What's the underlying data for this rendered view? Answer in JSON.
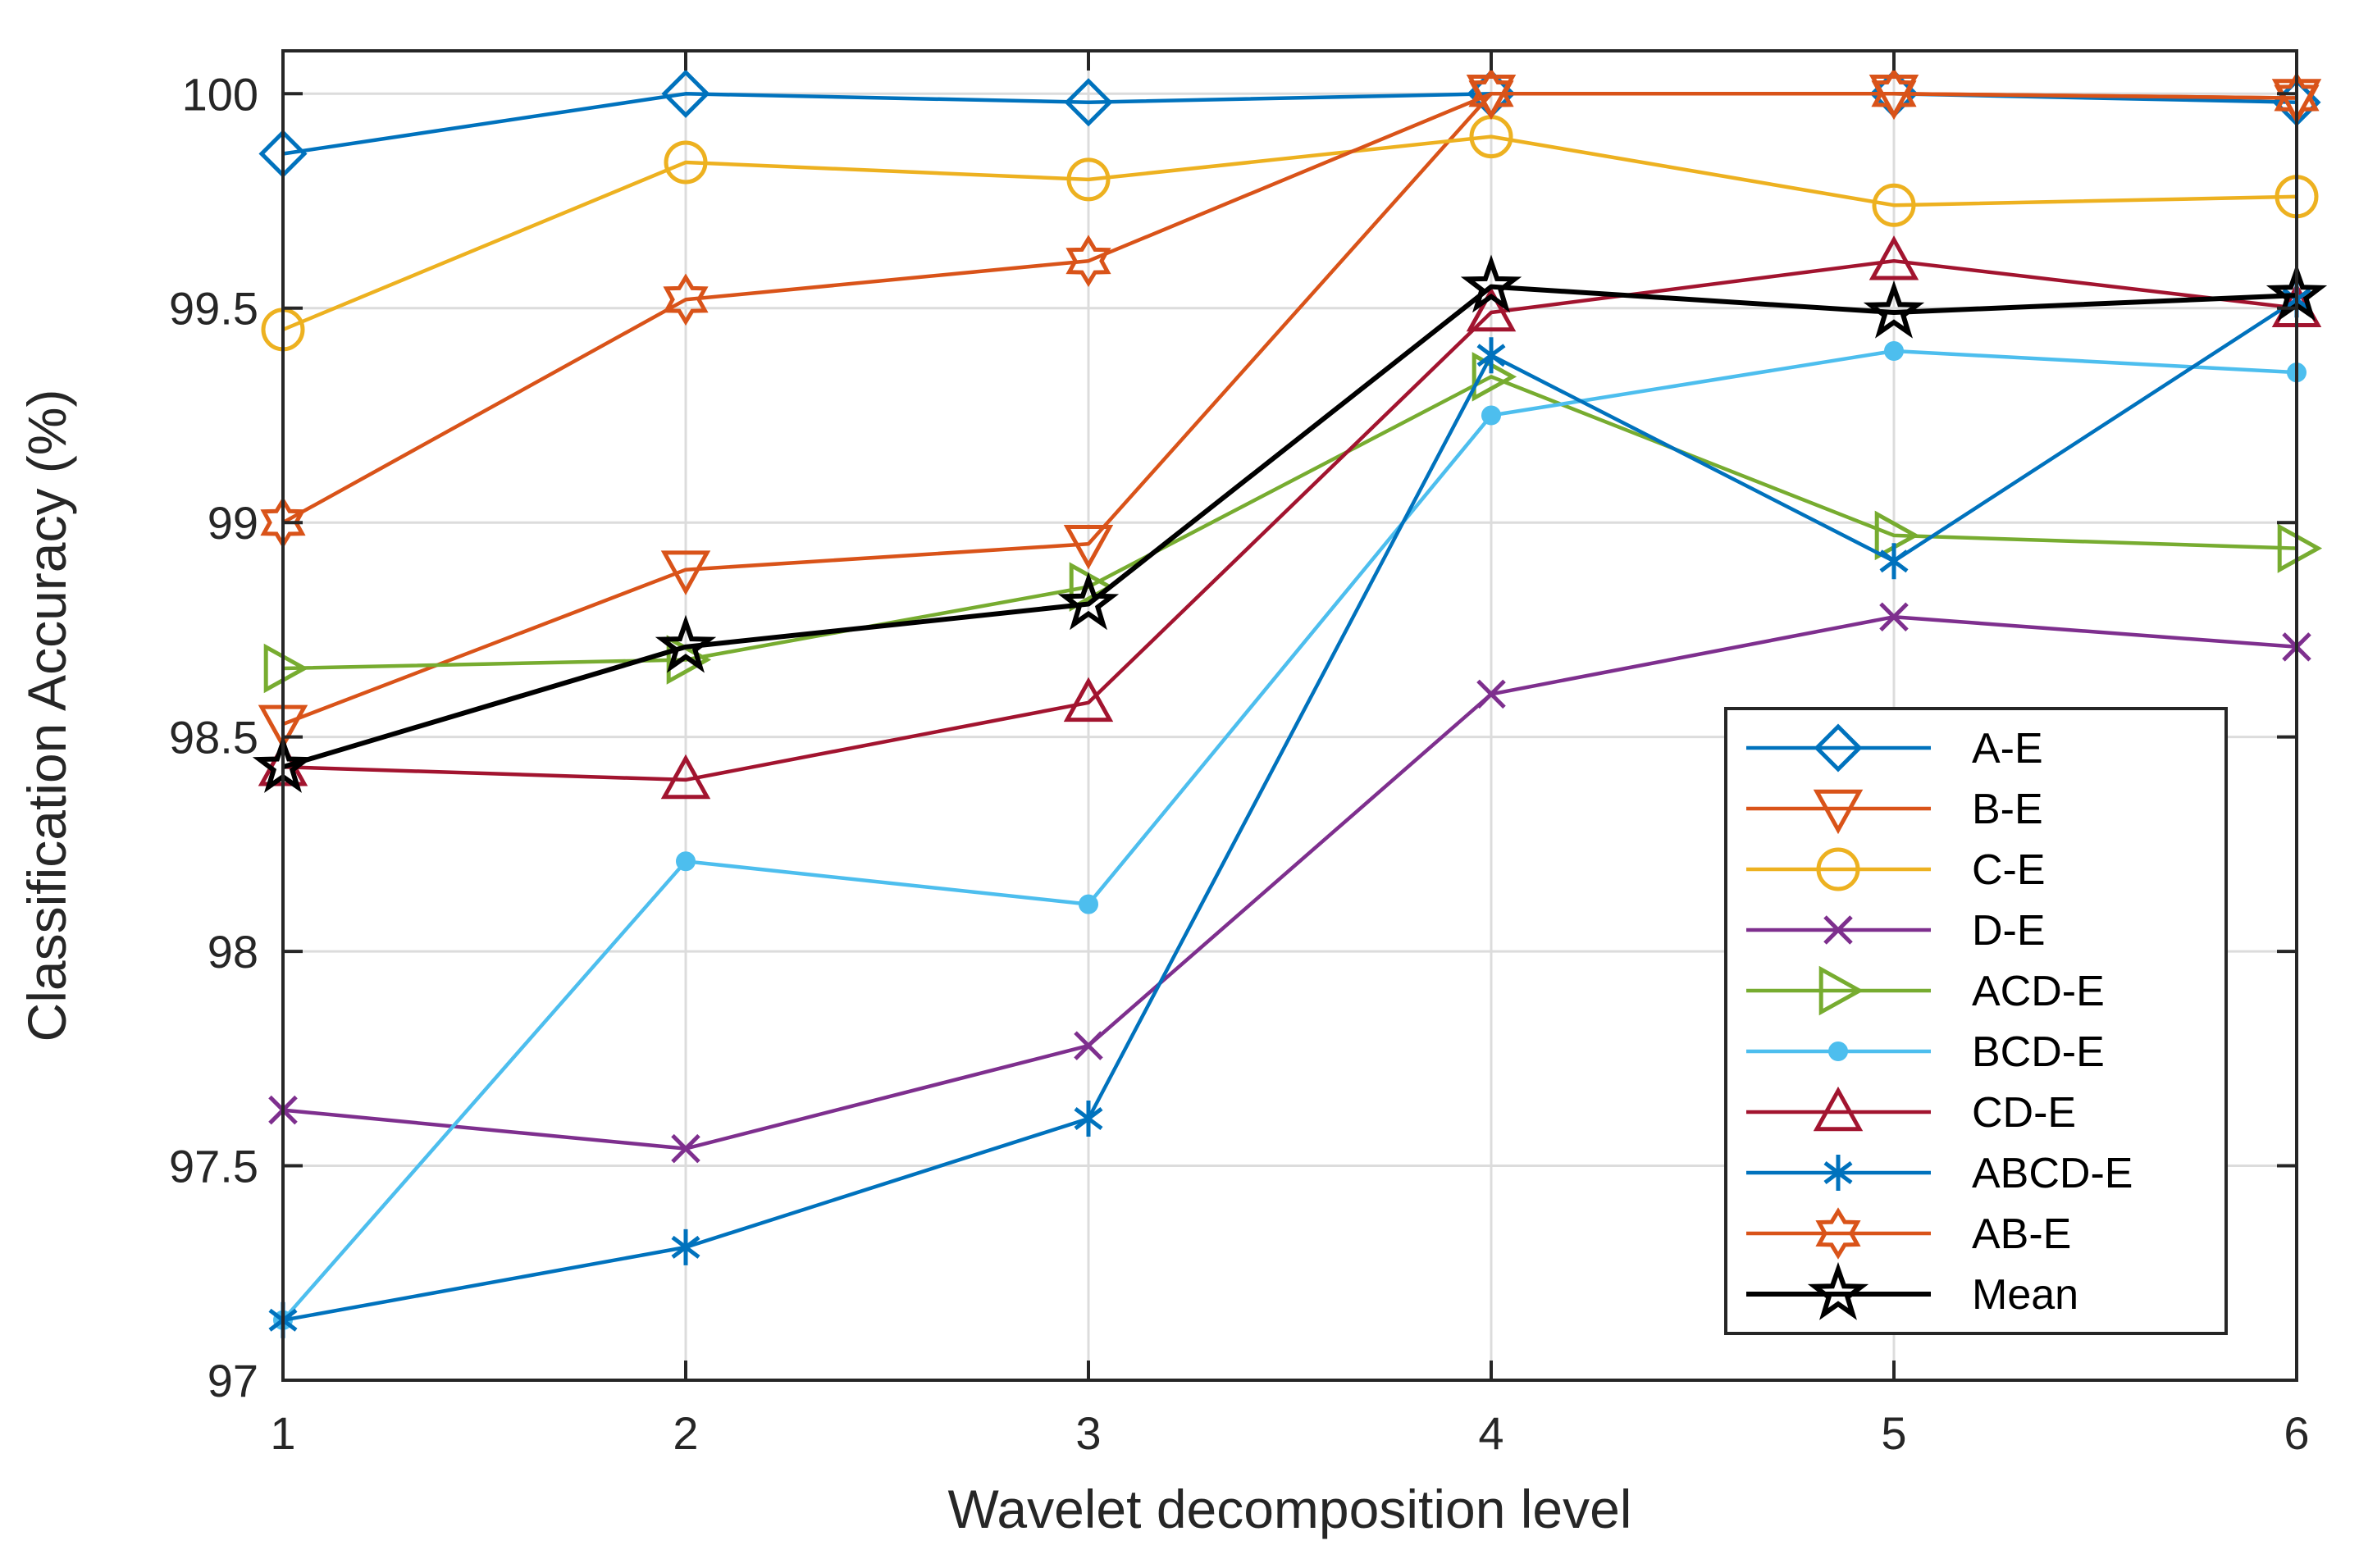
{
  "chart_data": {
    "type": "line",
    "title": "",
    "xlabel": "Wavelet decomposition level",
    "ylabel": "Classification Accuracy (%)",
    "xlim": [
      1,
      6
    ],
    "ylim": [
      97,
      100.1
    ],
    "x": [
      1,
      2,
      3,
      4,
      5,
      6
    ],
    "xticks": [
      "1",
      "2",
      "3",
      "4",
      "5",
      "6"
    ],
    "yticks": [
      97,
      97.5,
      98,
      98.5,
      99,
      99.5,
      100
    ],
    "ytick_labels": [
      "97",
      "97.5",
      "98",
      "98.5",
      "99",
      "99.5",
      "100"
    ],
    "grid": true,
    "legend_position": "bottom-right",
    "series": [
      {
        "name": "A-E",
        "color": "#0072BD",
        "marker": "diamond",
        "values": [
          99.86,
          100.0,
          99.98,
          100.0,
          100.0,
          99.98
        ]
      },
      {
        "name": "B-E",
        "color": "#D95319",
        "marker": "triangle-down",
        "values": [
          98.53,
          98.89,
          98.95,
          100.0,
          100.0,
          99.99
        ]
      },
      {
        "name": "C-E",
        "color": "#EDB120",
        "marker": "circle",
        "values": [
          99.45,
          99.84,
          99.8,
          99.9,
          99.74,
          99.76
        ]
      },
      {
        "name": "D-E",
        "color": "#7E2F8E",
        "marker": "x",
        "values": [
          97.63,
          97.54,
          97.78,
          98.6,
          98.78,
          98.71
        ]
      },
      {
        "name": "ACD-E",
        "color": "#77AC30",
        "marker": "triangle-right",
        "values": [
          98.66,
          98.68,
          98.85,
          99.34,
          98.97,
          98.94
        ]
      },
      {
        "name": "BCD-E",
        "color": "#4DBEEE",
        "marker": "dot",
        "values": [
          97.14,
          98.21,
          98.11,
          99.25,
          99.4,
          99.35
        ]
      },
      {
        "name": "CD-E",
        "color": "#A2142F",
        "marker": "triangle-up",
        "values": [
          98.43,
          98.4,
          98.58,
          99.49,
          99.61,
          99.5
        ]
      },
      {
        "name": "ABCD-E",
        "color": "#0072BD",
        "marker": "asterisk",
        "values": [
          97.14,
          97.31,
          97.61,
          99.39,
          98.91,
          99.52
        ]
      },
      {
        "name": "AB-E",
        "color": "#D95319",
        "marker": "hexagram",
        "values": [
          99.0,
          99.52,
          99.61,
          100.0,
          100.0,
          99.99
        ]
      },
      {
        "name": "Mean",
        "color": "#000000",
        "marker": "pentagram",
        "values": [
          98.43,
          98.71,
          98.81,
          99.55,
          99.49,
          99.53
        ]
      }
    ]
  }
}
